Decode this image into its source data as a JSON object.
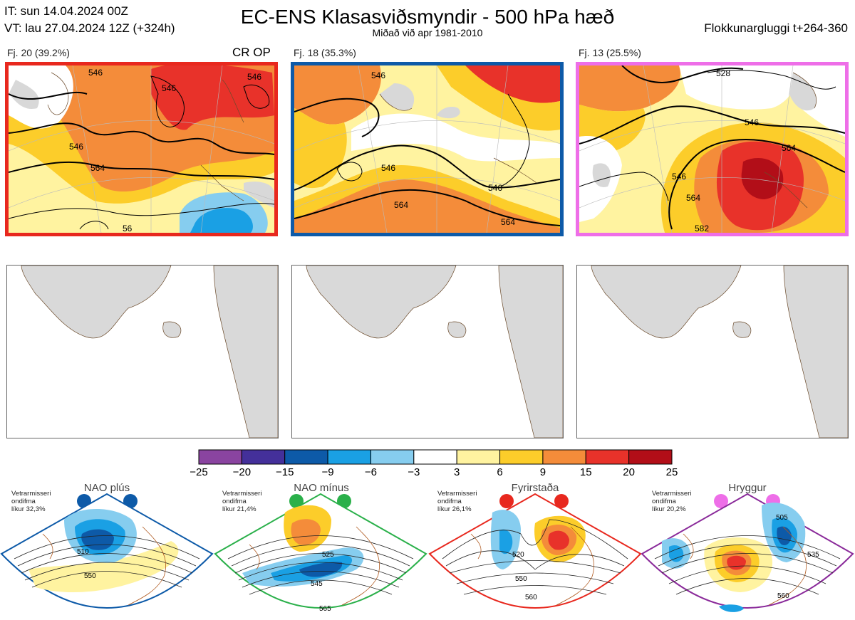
{
  "header": {
    "it_line": "IT: sun 14.04.2024 00Z",
    "vt_line": "VT: lau 27.04.2024 12Z  (+324h)",
    "title": "EC-ENS Klasasviðsmyndir - 500 hPa hæð",
    "subtitle": "Miðað við apr 1981-2010",
    "window": "Flokkunargluggi t+264-360"
  },
  "clusters": [
    {
      "label": "Fj. 20 (39.2%)",
      "extra": "CR OP",
      "border_color": "#e8281e",
      "contours": [
        "546",
        "546",
        "546",
        "546",
        "564",
        "56"
      ]
    },
    {
      "label": "Fj. 18 (35.3%)",
      "extra": "",
      "border_color": "#0d5aa8",
      "contours": [
        "546",
        "546",
        "546",
        "564",
        "564"
      ]
    },
    {
      "label": "Fj. 13 (25.5%)",
      "extra": "",
      "border_color": "#ee6ee8",
      "contours": [
        "528",
        "546",
        "546",
        "564",
        "564",
        "582"
      ]
    }
  ],
  "colorbar": {
    "colors": [
      "#8a44a0",
      "#44309a",
      "#0d5aa8",
      "#1aa0e4",
      "#86cdef",
      "#ffffff",
      "#fff3a0",
      "#fccd2a",
      "#f48c3a",
      "#e8322a",
      "#b20e18"
    ],
    "ticks": [
      "−25",
      "−20",
      "−15",
      "−9",
      "−6",
      "−3",
      "3",
      "6",
      "9",
      "15",
      "20",
      "25"
    ]
  },
  "regimes": [
    {
      "name": "NAO plús",
      "stats": [
        "Vetrarmisseri",
        "ondifma",
        "líkur 32,3%"
      ],
      "color": "#0d5aa8",
      "contours": [
        "510",
        "550"
      ]
    },
    {
      "name": "NAO mínus",
      "stats": [
        "Vetrarmisseri",
        "ondifma",
        "líkur 21,4%"
      ],
      "color": "#2ab04a",
      "contours": [
        "525",
        "545",
        "565"
      ]
    },
    {
      "name": "Fyrirstaða",
      "stats": [
        "Vetrarmisseri",
        "ondifma",
        "líkur 26,1%"
      ],
      "color": "#e8281e",
      "contours": [
        "520",
        "550",
        "560"
      ]
    },
    {
      "name": "Hryggur",
      "stats": [
        "Vetrarmisseri",
        "ondifma",
        "líkur 20,2%"
      ],
      "color": "#ee6ee8",
      "contours": [
        "505",
        "535",
        "560"
      ]
    }
  ]
}
